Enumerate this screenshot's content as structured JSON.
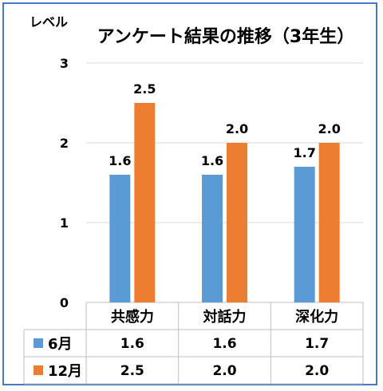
{
  "chart_data": {
    "type": "bar",
    "title": "アンケート結果の推移（3年生）",
    "ylabel": "レベル",
    "xlabel": "",
    "ylim": [
      0,
      3
    ],
    "yticks": [
      "0",
      "1",
      "2",
      "3"
    ],
    "grid": true,
    "legend": "data-table",
    "categories": [
      "共感力",
      "対話力",
      "深化力"
    ],
    "series": [
      {
        "name": "6月",
        "color": "#5b9bd5",
        "values": [
          1.6,
          1.6,
          1.7
        ],
        "labels": [
          "1.6",
          "1.6",
          "1.7"
        ]
      },
      {
        "name": "12月",
        "color": "#ed7d31",
        "values": [
          2.5,
          2.0,
          2.0
        ],
        "labels": [
          "2.5",
          "2.0",
          "2.0"
        ]
      }
    ]
  }
}
